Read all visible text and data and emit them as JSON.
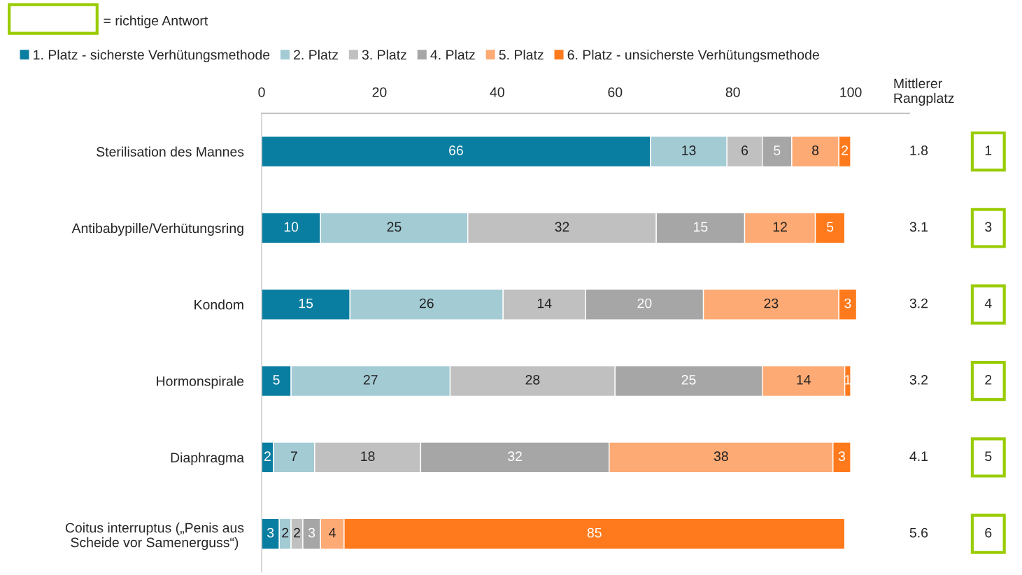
{
  "chart_data": {
    "type": "bar",
    "orientation": "horizontal",
    "stacked": true,
    "data_labels": true,
    "grid": false,
    "legend": "top",
    "categories": [
      "Sterilisation des Mannes",
      "Antibabypille/Verhütungsring",
      "Kondom",
      "Hormonspirale",
      "Diaphragma",
      "Coitus interruptus („Penis aus\nScheide vor Samenerguss“)"
    ],
    "series": [
      {
        "name": "1. Platz - sicherste Verhütungsmethode",
        "color": "#0a7ea0",
        "values": [
          66,
          10,
          15,
          5,
          2,
          3
        ]
      },
      {
        "name": "2. Platz",
        "color": "#a3cbd4",
        "values": [
          13,
          25,
          26,
          27,
          7,
          2
        ]
      },
      {
        "name": "3. Platz",
        "color": "#c0c0c0",
        "values": [
          6,
          32,
          14,
          28,
          18,
          2
        ]
      },
      {
        "name": "4. Platz",
        "color": "#a6a6a6",
        "values": [
          5,
          15,
          20,
          25,
          32,
          3
        ]
      },
      {
        "name": "5. Platz",
        "color": "#fdaa74",
        "values": [
          8,
          12,
          23,
          14,
          38,
          4
        ]
      },
      {
        "name": "6. Platz - unsicherste Verhütungsmethode",
        "color": "#fe7a1d",
        "values": [
          2,
          5,
          3,
          1,
          3,
          85
        ]
      }
    ],
    "xlim": [
      0,
      110
    ],
    "xticks": [
      0,
      20,
      40,
      60,
      80,
      100
    ],
    "annotations": [
      "= richtige Antwort",
      "Mittlerer\nRangplatz",
      "1.8",
      "3.1",
      "3.2",
      "3.2",
      "4.1",
      "5.6",
      "1",
      "3",
      "4",
      "2",
      "5",
      "6"
    ]
  }
}
